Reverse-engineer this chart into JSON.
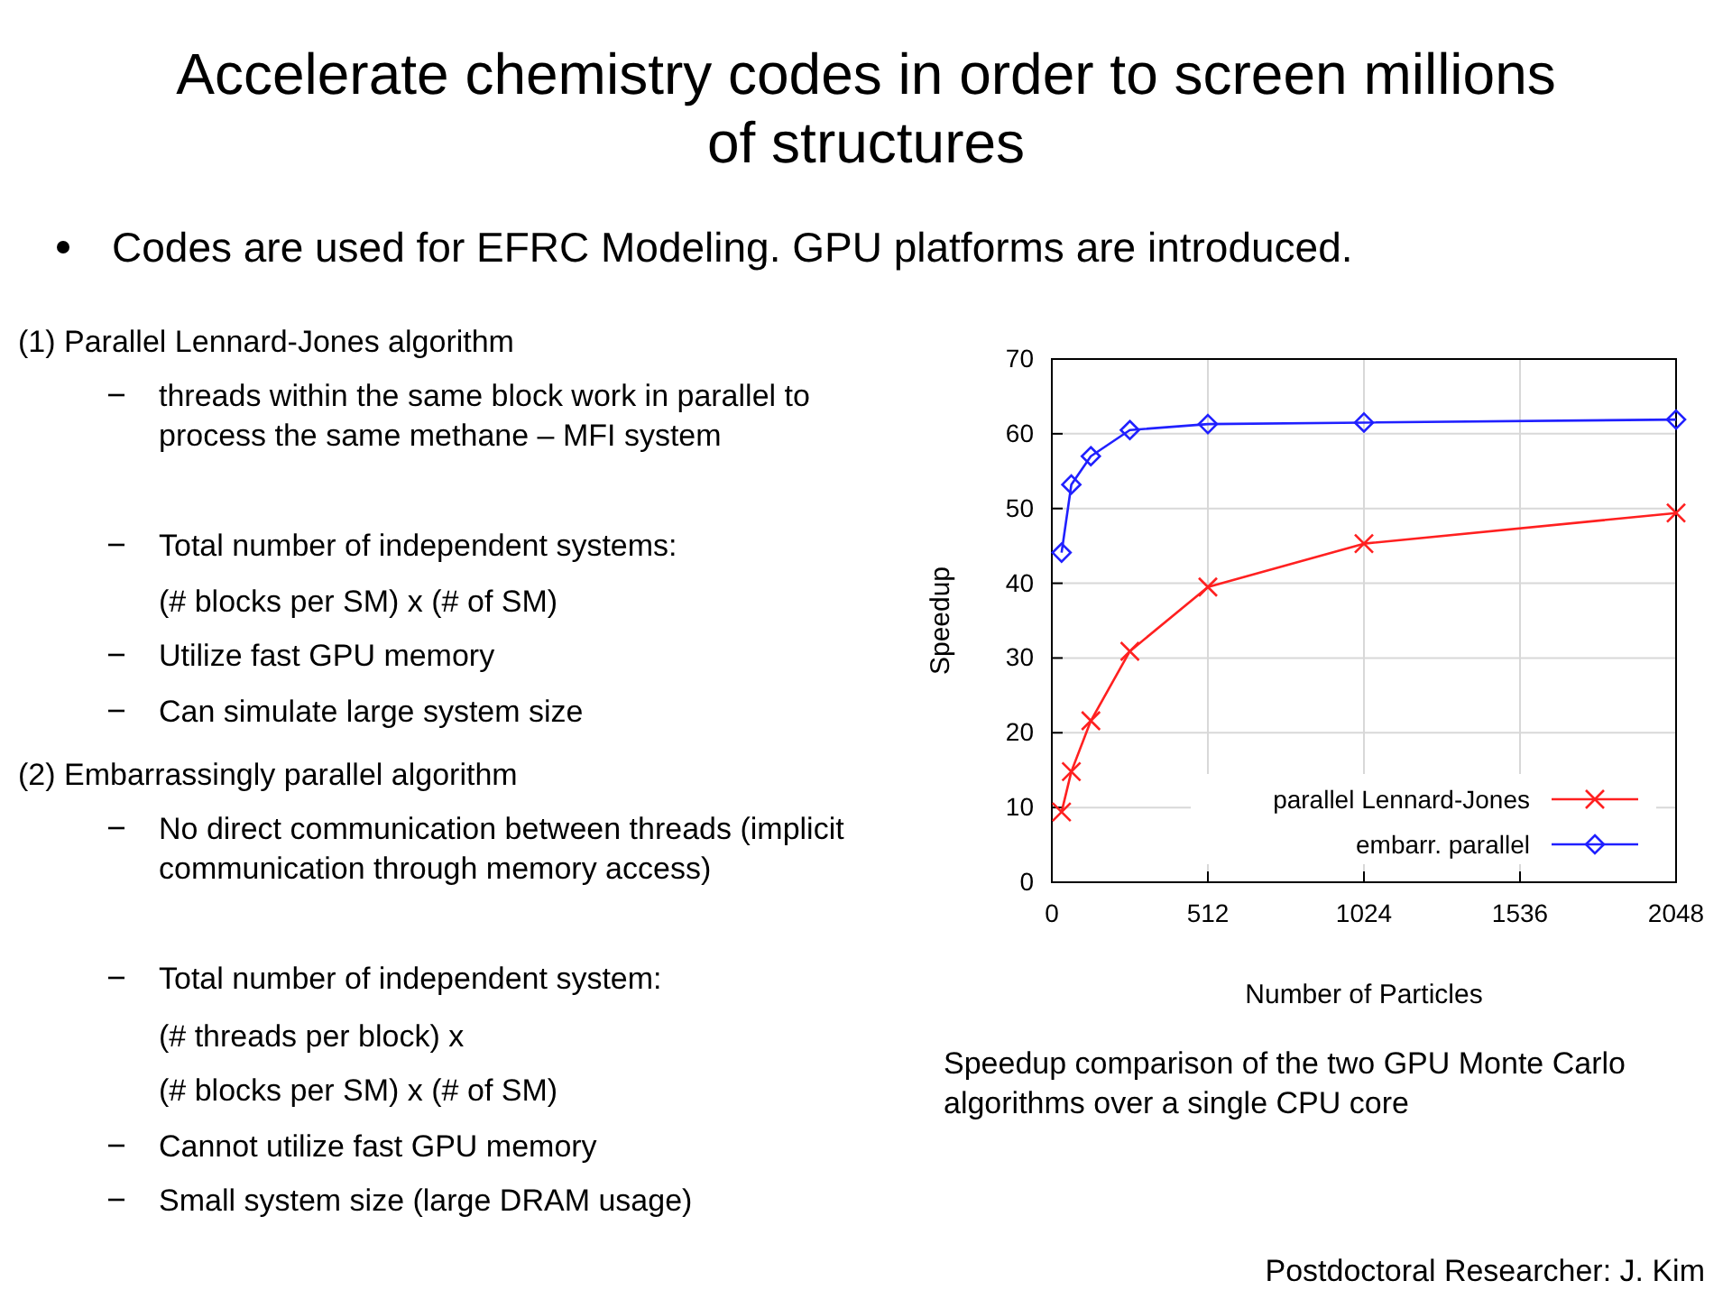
{
  "chart_data": {
    "type": "line",
    "title": "Accelerate chemistry codes in order to screen millions of structures",
    "subtitle": "Codes are used for EFRC Modeling. GPU platforms are introduced.",
    "xlabel": "Number of Particles",
    "ylabel": "Speedup",
    "x": [
      32,
      64,
      128,
      256,
      512,
      1024,
      2048
    ],
    "series": [
      {
        "name": "parallel Lennard-Jones",
        "color": "#ff2020",
        "marker": "cross",
        "values": [
          9.4,
          14.8,
          21.6,
          30.9,
          39.5,
          45.3,
          49.4
        ]
      },
      {
        "name": "embarr. parallel",
        "color": "#2020ff",
        "marker": "diamond",
        "values": [
          44.1,
          53.2,
          57.0,
          60.5,
          61.3,
          61.5,
          61.9
        ]
      }
    ],
    "xlim": [
      0,
      2048
    ],
    "xticks": [
      0,
      512,
      1024,
      1536,
      2048
    ],
    "ylim": [
      0,
      70
    ],
    "yticks": [
      0,
      10,
      20,
      30,
      40,
      50,
      60,
      70
    ],
    "grid": true,
    "legend": "bottom right",
    "annotations": [
      "(1) Parallel Lennard-Jones algorithm",
      "threads within the same block work in parallel to process the same methane – MFI system",
      "Total number of independent systems:",
      "(# blocks per SM) x (# of SM)",
      "Utilize fast GPU memory",
      "Can simulate large system size",
      "(2) Embarrassingly parallel algorithm",
      "No direct communication between threads (implicit communication through memory access)",
      "Total number of independent system:",
      "(# threads per block) x",
      "(# blocks per SM) x (# of SM)",
      "Cannot utilize fast GPU memory",
      "Small system size (large DRAM usage)",
      "Speedup comparison of the two GPU Monte Carlo algorithms over a single CPU core",
      "Postdoctoral Researcher: J. Kim"
    ]
  }
}
